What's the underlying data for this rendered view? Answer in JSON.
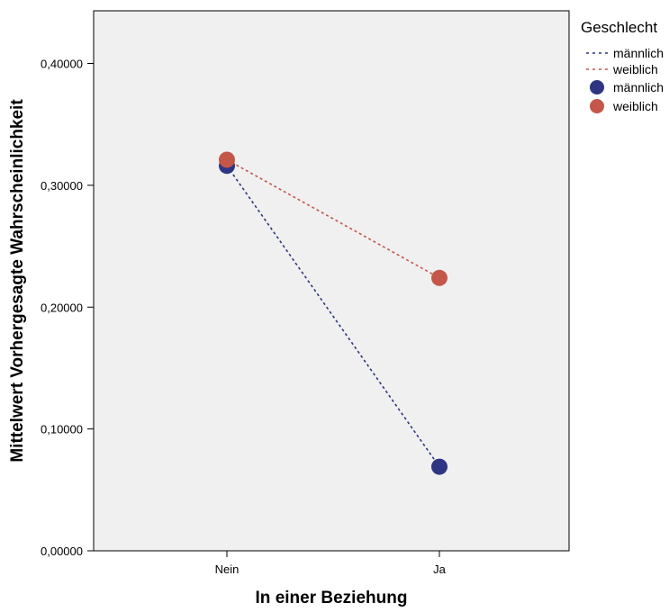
{
  "chart_data": {
    "type": "line",
    "title": "",
    "xlabel": "In einer Beziehung",
    "ylabel": "Mittelwert Vorhergesagte Wahrscheinlichkeit",
    "categories": [
      "Nein",
      "Ja"
    ],
    "ylim": [
      0,
      0.44
    ],
    "yticks": [
      0,
      0.1,
      0.2,
      0.3,
      0.4
    ],
    "ytick_labels": [
      "0,00000",
      "0,10000",
      "0,20000",
      "0,30000",
      "0,40000"
    ],
    "grid": false,
    "legend_placement": "right",
    "legend_title": "Geschlecht",
    "series": [
      {
        "name": "männlich",
        "values": [
          0.316,
          0.069
        ],
        "color": "#2e3583"
      },
      {
        "name": "weiblich",
        "values": [
          0.321,
          0.224
        ],
        "color": "#c4564a"
      }
    ],
    "legend_entries": [
      {
        "label": "männlich",
        "kind": "line",
        "color": "#2e3583"
      },
      {
        "label": "weiblich",
        "kind": "line",
        "color": "#c4564a"
      },
      {
        "label": "männlich",
        "kind": "marker",
        "color": "#2e3583"
      },
      {
        "label": "weiblich",
        "kind": "marker",
        "color": "#c4564a"
      }
    ],
    "plot_background": "#f0f0f0"
  }
}
